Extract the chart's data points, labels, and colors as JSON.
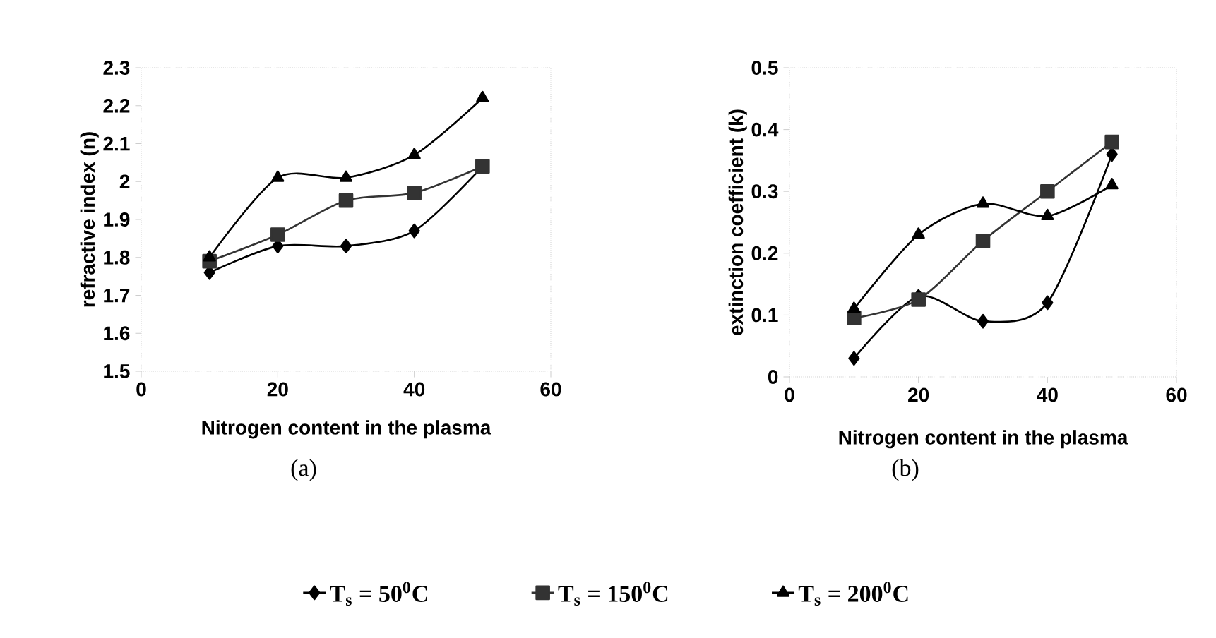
{
  "chart_data": [
    {
      "type": "line",
      "xlabel": "Nitrogen content in the plasma",
      "ylabel": "refractive index (n)",
      "x": [
        10,
        20,
        30,
        40,
        50
      ],
      "xlim": [
        0,
        60
      ],
      "xticks": [
        0,
        20,
        40,
        60
      ],
      "ylim": [
        1.5,
        2.3
      ],
      "yticks": [
        1.5,
        1.6,
        1.7,
        1.8,
        1.9,
        2,
        2.1,
        2.2,
        2.3
      ],
      "legend": "bottom",
      "line_style": "solid",
      "annotations": [
        "(a)"
      ],
      "series": [
        {
          "name": "T$_{s}$ = 50$^{0}$C",
          "color": "#000000",
          "marker": "diamond",
          "values": [
            1.76,
            1.83,
            1.83,
            1.87,
            2.04
          ]
        },
        {
          "name": "T$_{s}$ = 150$^{0}$C",
          "color": "#333333",
          "marker": "square",
          "values": [
            1.79,
            1.86,
            1.95,
            1.97,
            2.04
          ]
        },
        {
          "name": "T$_{s}$ = 200$^{0}$C",
          "color": "#000000",
          "marker": "triangle",
          "values": [
            1.8,
            2.01,
            2.01,
            2.07,
            2.22
          ]
        }
      ]
    },
    {
      "type": "line",
      "xlabel": "Nitrogen content in the plasma",
      "ylabel": "extinction coefficient (k)",
      "x": [
        10,
        20,
        30,
        40,
        50
      ],
      "xlim": [
        0,
        60
      ],
      "xticks": [
        0,
        20,
        40,
        60
      ],
      "ylim": [
        0,
        0.5
      ],
      "yticks": [
        0,
        0.1,
        0.2,
        0.3,
        0.4,
        0.5
      ],
      "line_style": "solid",
      "annotations": [
        "(b)"
      ],
      "series": [
        {
          "color": "#000000",
          "marker": "diamond",
          "values": [
            0.03,
            0.13,
            0.09,
            0.12,
            0.36
          ]
        },
        {
          "color": "#333333",
          "marker": "square",
          "values": [
            0.095,
            0.125,
            0.22,
            0.3,
            0.38
          ]
        },
        {
          "color": "#000000",
          "marker": "triangle",
          "values": [
            0.11,
            0.23,
            0.28,
            0.26,
            0.31
          ]
        }
      ]
    }
  ]
}
